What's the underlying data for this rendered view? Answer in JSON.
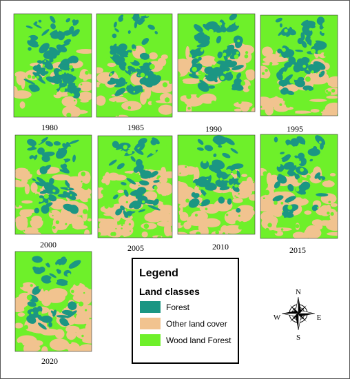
{
  "maps": [
    {
      "year": "1980"
    },
    {
      "year": "1985"
    },
    {
      "year": "1990"
    },
    {
      "year": "1995"
    },
    {
      "year": "2000"
    },
    {
      "year": "2005"
    },
    {
      "year": "2010"
    },
    {
      "year": "2015"
    },
    {
      "year": "2020"
    }
  ],
  "legend": {
    "title": "Legend",
    "subtitle": "Land classes",
    "classes": [
      {
        "label": "Forest",
        "color": "#1b9683"
      },
      {
        "label": "Other land cover",
        "color": "#f1c38f"
      },
      {
        "label": "Wood land Forest",
        "color": "#6ef02a"
      }
    ]
  },
  "compass": {
    "north": "N",
    "south": "S",
    "east": "E",
    "west": "W"
  }
}
